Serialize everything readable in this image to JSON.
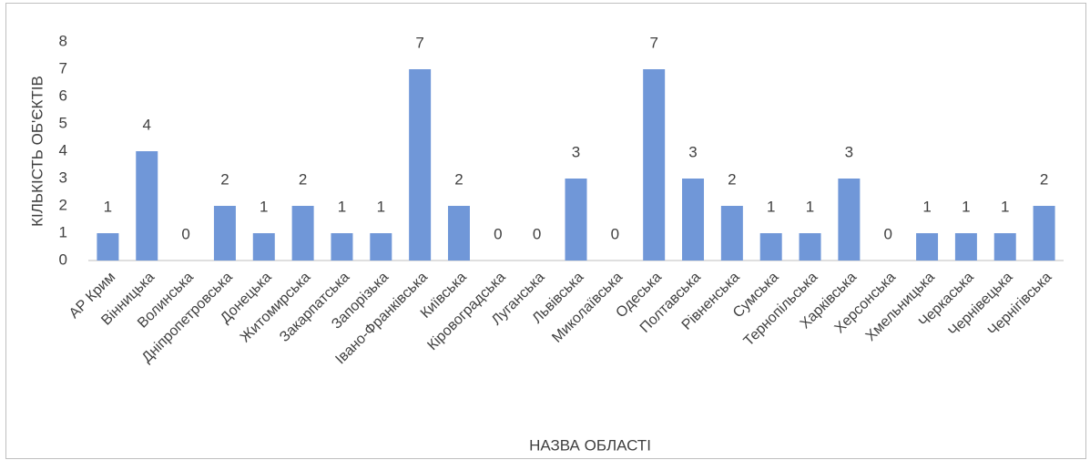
{
  "chart_data": {
    "type": "bar",
    "x_label": "НАЗВА ОБЛАСТІ",
    "y_label": "КІЛЬКІСТЬ ОБ'ЄКТІВ",
    "categories": [
      "АР Крим",
      "Вінницька",
      "Волинська",
      "Дніпропетровська",
      "Донецька",
      "Житомирська",
      "Закарпатська",
      "Запорізька",
      "Івано-Франківська",
      "Київська",
      "Кіровоградська",
      "Луганська",
      "Львівська",
      "Миколаївська",
      "Одеська",
      "Полтавська",
      "Рівненська",
      "Сумська",
      "Тернопільська",
      "Харківська",
      "Херсонська",
      "Хмельницька",
      "Черкаська",
      "Чернівецька",
      "Чернігівська"
    ],
    "values": [
      1,
      4,
      0,
      2,
      1,
      2,
      1,
      1,
      7,
      2,
      0,
      0,
      3,
      0,
      7,
      3,
      2,
      1,
      1,
      3,
      0,
      1,
      1,
      1,
      2
    ],
    "color": "#7097d8",
    "ylim": [
      0,
      8
    ],
    "yticks": [
      0,
      1,
      2,
      3,
      4,
      5,
      6,
      7,
      8
    ],
    "grid": false
  }
}
